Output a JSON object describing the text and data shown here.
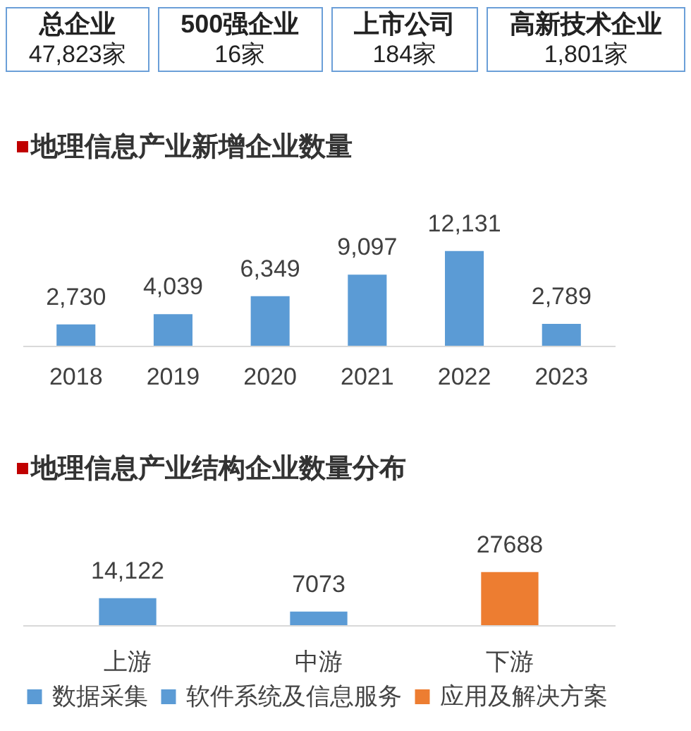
{
  "chart_data": [
    {
      "type": "other",
      "categories": [
        "总企业",
        "500强企业",
        "上市公司",
        "高新技术企业"
      ],
      "value_labels": [
        "47,823家",
        "16家",
        "184家",
        "1,801家"
      ]
    },
    {
      "type": "bar",
      "title": "地理信息产业新增企业数量",
      "categories": [
        "2018",
        "2019",
        "2020",
        "2021",
        "2022",
        "2023"
      ],
      "values": [
        2730,
        4039,
        6349,
        9097,
        12131,
        2789
      ],
      "color": "#5b9bd5",
      "value_labels": [
        "2,730",
        "4,039",
        "6,349",
        "9,097",
        "12,131",
        "2,789"
      ]
    },
    {
      "type": "bar",
      "title": "地理信息产业结构企业数量分布",
      "categories": [
        "上游",
        "中游",
        "下游"
      ],
      "legend": "bottom",
      "series": [
        {
          "name": "数据采集",
          "color": "#5b9bd5",
          "values": [
            14122,
            null,
            null
          ],
          "value_labels": [
            "14,122",
            null,
            null
          ]
        },
        {
          "name": "软件系统及信息服务",
          "color": "#5b9bd5",
          "values": [
            null,
            7073,
            null
          ],
          "value_labels": [
            null,
            "7073",
            null
          ]
        },
        {
          "name": "应用及解决方案",
          "color": "#ed7d31",
          "values": [
            null,
            null,
            27688
          ],
          "value_labels": [
            null,
            null,
            "27688"
          ]
        }
      ]
    }
  ]
}
